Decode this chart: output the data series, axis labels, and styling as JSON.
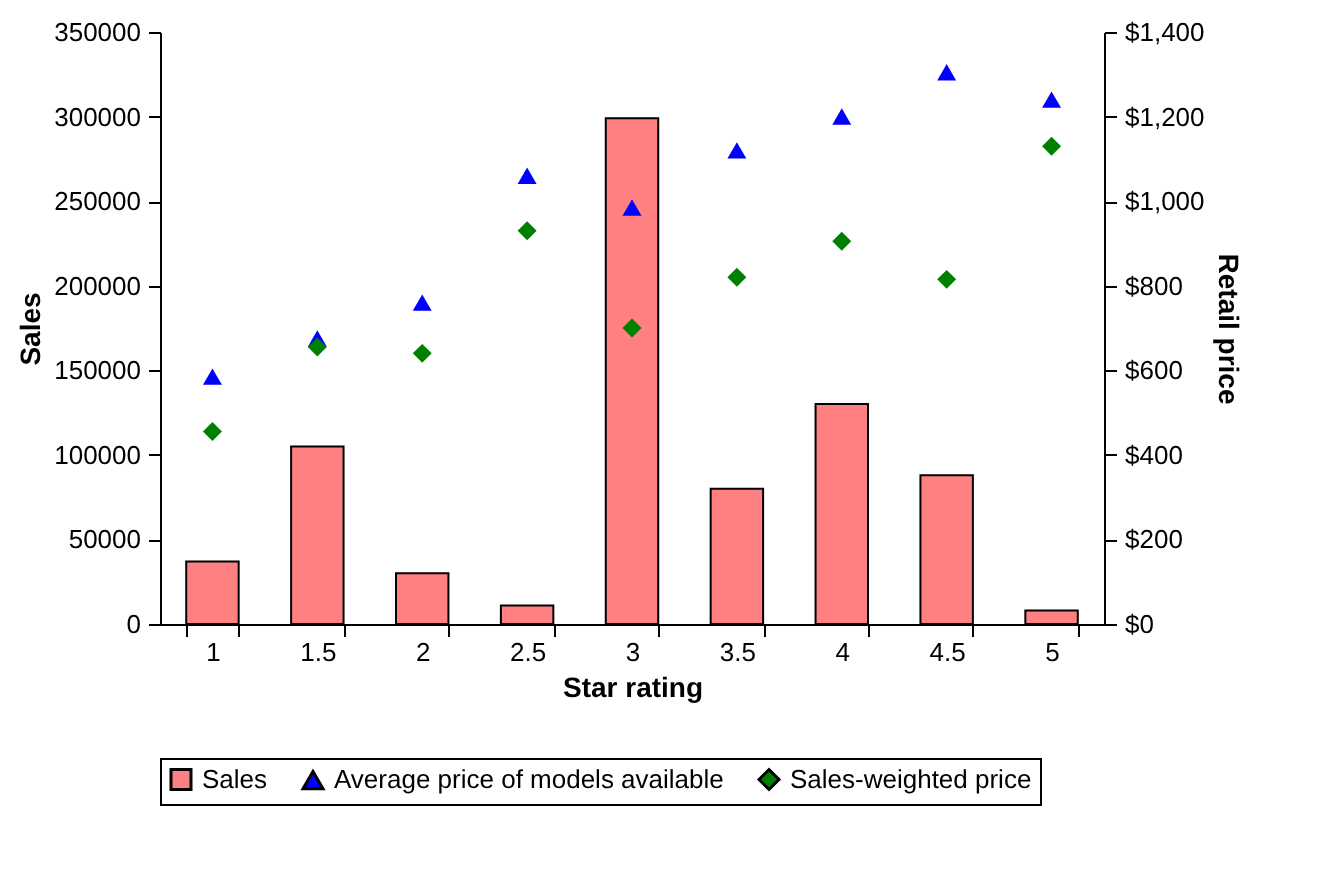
{
  "chart_data": {
    "type": "bar",
    "xlabel": "Star rating",
    "ylabel": "Sales",
    "y2label": "Retail price",
    "categories": [
      "1",
      "1.5",
      "2",
      "2.5",
      "3",
      "3.5",
      "4",
      "4.5",
      "5"
    ],
    "series": [
      {
        "name": "Sales",
        "color": "#ff8080",
        "values": [
          37000,
          105000,
          30000,
          11000,
          299000,
          80000,
          130000,
          88000,
          8000
        ]
      },
      {
        "name": "Average price of models available",
        "type": "scatter",
        "marker": "triangle",
        "axis": "y2",
        "color": "#0000ff",
        "values": [
          585,
          675,
          760,
          1060,
          985,
          1120,
          1200,
          1305,
          1240
        ]
      },
      {
        "name": "Sales-weighted price",
        "type": "scatter",
        "marker": "diamond",
        "axis": "y2",
        "color": "#008000",
        "values": [
          455,
          655,
          640,
          930,
          700,
          820,
          905,
          815,
          1130
        ]
      }
    ],
    "ylim": [
      0,
      350000
    ],
    "yticks": [
      0,
      50000,
      100000,
      150000,
      200000,
      250000,
      300000,
      350000
    ],
    "y2lim": [
      0,
      1400
    ],
    "y2ticks": [
      {
        "value": 0,
        "label": "$0"
      },
      {
        "value": 200,
        "label": "$200"
      },
      {
        "value": 400,
        "label": "$400"
      },
      {
        "value": 600,
        "label": "$600"
      },
      {
        "value": 800,
        "label": "$800"
      },
      {
        "value": 1000,
        "label": "$1,000"
      },
      {
        "value": 1200,
        "label": "$1,200"
      },
      {
        "value": 1400,
        "label": "$1,400"
      }
    ],
    "grid": false,
    "legend": "bottom"
  }
}
